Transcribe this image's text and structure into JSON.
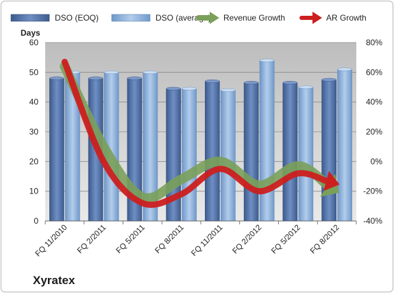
{
  "chart_data": {
    "type": "bar",
    "title": "",
    "company": "Xyratex",
    "ylabel": "Days",
    "ylim": [
      0,
      60
    ],
    "yticks": [
      0,
      10,
      20,
      30,
      40,
      50,
      60
    ],
    "y2lim": [
      -40,
      80
    ],
    "y2ticks": [
      "-40%",
      "-20%",
      "0%",
      "20%",
      "40%",
      "60%",
      "80%"
    ],
    "y2tick_values": [
      -40,
      -20,
      0,
      20,
      40,
      60,
      80
    ],
    "categories": [
      "FQ 11/2010",
      "FQ 2/2011",
      "FQ 5/2011",
      "FQ 8/2011",
      "FQ 11/2011",
      "FQ 2/2012",
      "FQ 5/2012",
      "FQ 8/2012"
    ],
    "series": [
      {
        "name": "DSO (EOQ)",
        "kind": "bar",
        "axis": "left",
        "color": "#4f6fa6",
        "values": [
          48,
          48,
          48,
          44.5,
          47,
          46.5,
          46.5,
          47.5
        ]
      },
      {
        "name": "DSO (average)",
        "kind": "bar",
        "axis": "left",
        "color": "#8fb3de",
        "values": [
          50,
          50,
          50,
          44.5,
          44,
          54,
          45,
          51
        ]
      },
      {
        "name": "Revenue Growth",
        "kind": "arrow",
        "axis": "right",
        "color": "#7aa05a",
        "values": [
          64,
          10,
          -24,
          -12,
          0,
          -16,
          -3,
          -20
        ]
      },
      {
        "name": "AR Growth",
        "kind": "arrow",
        "axis": "right",
        "color": "#cc1f1f",
        "values": [
          67,
          0,
          -28,
          -22,
          -5,
          -20,
          -8,
          -15
        ]
      }
    ],
    "grid": true,
    "legend": "top"
  }
}
